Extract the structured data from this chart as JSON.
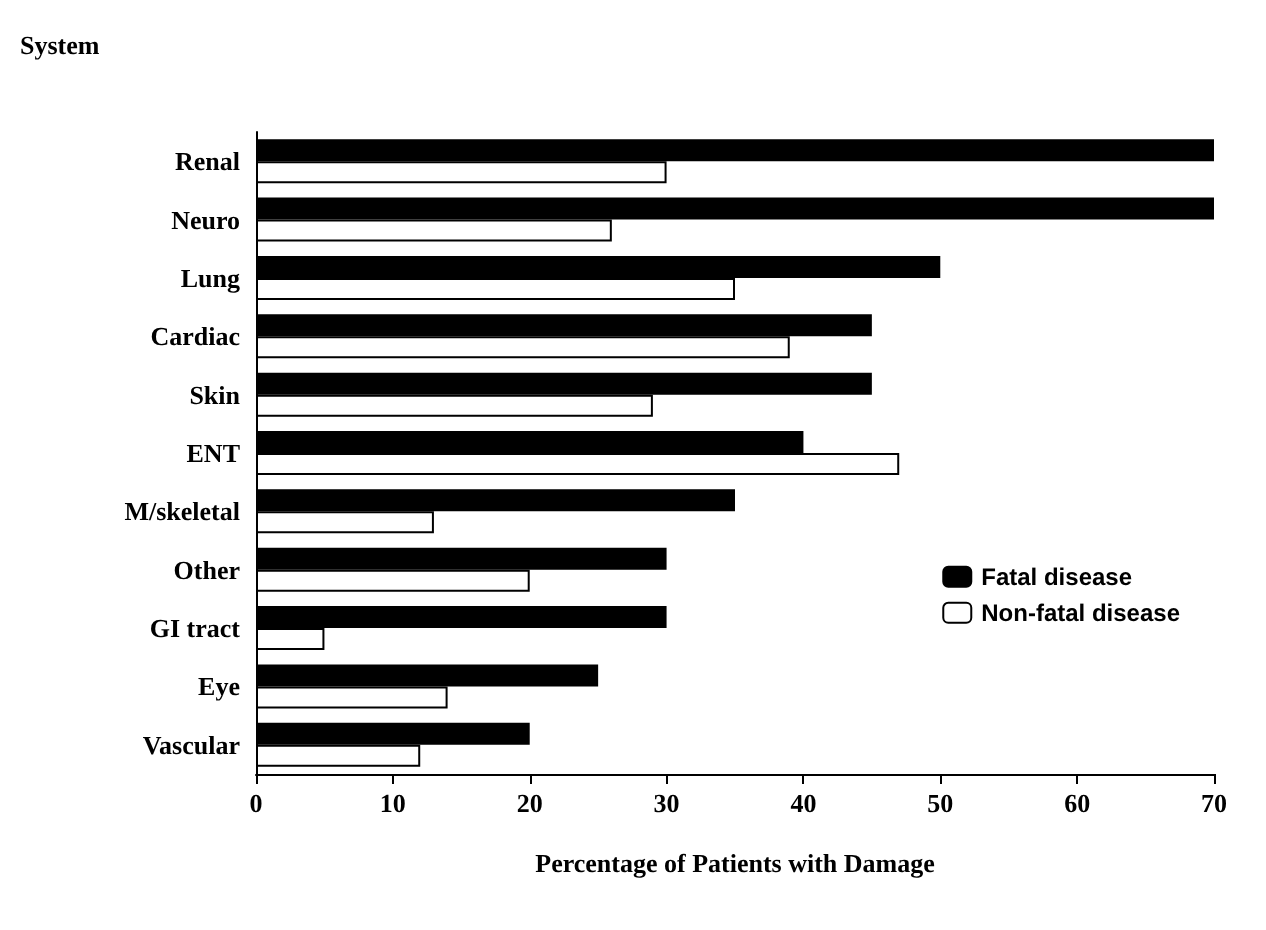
{
  "chart_data": {
    "type": "bar",
    "orientation": "horizontal",
    "ylabel": "System",
    "xlabel": "Percentage of Patients with Damage",
    "categories": [
      "Renal",
      "Neuro",
      "Lung",
      "Cardiac",
      "Skin",
      "ENT",
      "M/skeletal",
      "Other",
      "GI tract",
      "Eye",
      "Vascular"
    ],
    "series": [
      {
        "name": "Fatal disease",
        "color": "#000000",
        "values": [
          70,
          70,
          50,
          45,
          45,
          40,
          35,
          30,
          30,
          25,
          20
        ]
      },
      {
        "name": "Non-fatal disease",
        "color": "#ffffff",
        "values": [
          30,
          26,
          35,
          39,
          29,
          47,
          13,
          20,
          5,
          14,
          12
        ]
      }
    ],
    "xlim": [
      0,
      70
    ],
    "xticks": [
      0,
      10,
      20,
      30,
      40,
      50,
      60,
      70
    ],
    "grid": false,
    "legend": "right"
  }
}
